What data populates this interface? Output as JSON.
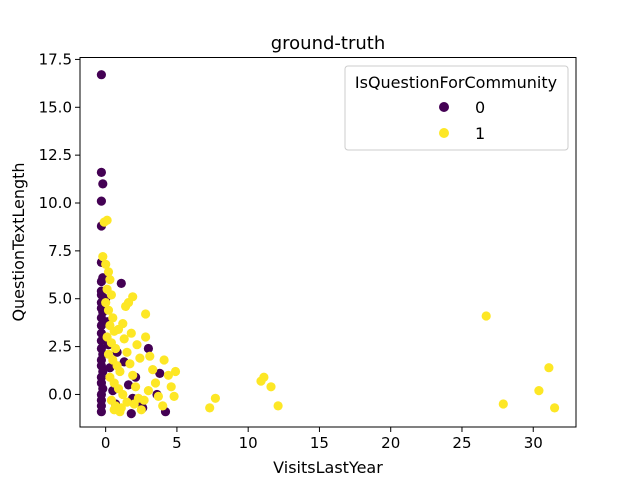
{
  "chart_data": {
    "type": "scatter",
    "title": "ground-truth",
    "xlabel": "VisitsLastYear",
    "ylabel": "QuestionTextLength",
    "xlim": [
      -1.8,
      33.0
    ],
    "ylim": [
      -1.7,
      17.6
    ],
    "xticks": [
      0,
      5,
      10,
      15,
      20,
      25,
      30
    ],
    "xtick_labels": [
      "0",
      "5",
      "10",
      "15",
      "20",
      "25",
      "30"
    ],
    "yticks": [
      0.0,
      2.5,
      5.0,
      7.5,
      10.0,
      12.5,
      15.0,
      17.5
    ],
    "ytick_labels": [
      "0.0",
      "2.5",
      "5.0",
      "7.5",
      "10.0",
      "12.5",
      "15.0",
      "17.5"
    ],
    "grid": false,
    "legend": {
      "title": "IsQuestionForCommunity",
      "placement": "top-right",
      "entries": [
        {
          "label": "0",
          "color": "#440154"
        },
        {
          "label": "1",
          "color": "#fde725"
        }
      ]
    },
    "series": [
      {
        "color": "#440154",
        "points": [
          [
            -0.3,
            16.7
          ],
          [
            -0.3,
            11.6
          ],
          [
            -0.2,
            11.0
          ],
          [
            -0.3,
            10.1
          ],
          [
            -0.3,
            8.8
          ],
          [
            -0.3,
            6.9
          ],
          [
            -0.2,
            6.1
          ],
          [
            -0.3,
            5.9
          ],
          [
            -0.3,
            5.4
          ],
          [
            -0.3,
            5.2
          ],
          [
            -0.3,
            4.8
          ],
          [
            -0.3,
            4.5
          ],
          [
            -0.2,
            4.3
          ],
          [
            -0.3,
            4.0
          ],
          [
            -0.3,
            3.6
          ],
          [
            -0.3,
            3.2
          ],
          [
            -0.3,
            2.8
          ],
          [
            -0.3,
            2.4
          ],
          [
            -0.2,
            2.1
          ],
          [
            -0.3,
            1.8
          ],
          [
            -0.3,
            1.5
          ],
          [
            -0.2,
            1.2
          ],
          [
            -0.3,
            0.9
          ],
          [
            -0.3,
            0.6
          ],
          [
            -0.2,
            0.3
          ],
          [
            -0.3,
            0.0
          ],
          [
            -0.3,
            -0.3
          ],
          [
            -0.3,
            -0.6
          ],
          [
            -0.3,
            -0.9
          ],
          [
            0.0,
            5.0
          ],
          [
            0.1,
            3.8
          ],
          [
            0.2,
            2.6
          ],
          [
            0.3,
            1.4
          ],
          [
            0.5,
            0.2
          ],
          [
            0.7,
            -0.5
          ],
          [
            1.1,
            5.8
          ],
          [
            1.3,
            1.7
          ],
          [
            1.6,
            0.5
          ],
          [
            1.9,
            -0.2
          ],
          [
            2.1,
            0.9
          ],
          [
            2.6,
            -0.7
          ],
          [
            3.0,
            2.4
          ],
          [
            3.6,
            0.0
          ],
          [
            3.8,
            1.1
          ],
          [
            4.2,
            -0.9
          ],
          [
            1.8,
            -1.0
          ],
          [
            0.8,
            2.2
          ],
          [
            2.3,
            -0.4
          ]
        ]
      },
      {
        "color": "#fde725",
        "points": [
          [
            0.1,
            9.1
          ],
          [
            -0.1,
            9.0
          ],
          [
            -0.2,
            7.2
          ],
          [
            0.0,
            6.8
          ],
          [
            0.2,
            6.4
          ],
          [
            0.3,
            6.0
          ],
          [
            0.1,
            5.5
          ],
          [
            0.4,
            5.2
          ],
          [
            0.0,
            4.8
          ],
          [
            0.2,
            4.4
          ],
          [
            0.5,
            4.0
          ],
          [
            0.3,
            3.6
          ],
          [
            0.6,
            3.3
          ],
          [
            0.1,
            3.0
          ],
          [
            0.4,
            2.7
          ],
          [
            0.7,
            2.4
          ],
          [
            0.2,
            2.1
          ],
          [
            0.5,
            1.8
          ],
          [
            0.8,
            1.5
          ],
          [
            1.0,
            1.2
          ],
          [
            0.3,
            0.9
          ],
          [
            0.6,
            0.6
          ],
          [
            0.9,
            0.3
          ],
          [
            1.2,
            0.0
          ],
          [
            0.4,
            -0.3
          ],
          [
            0.7,
            -0.6
          ],
          [
            1.0,
            -0.9
          ],
          [
            1.3,
            2.9
          ],
          [
            1.5,
            2.2
          ],
          [
            1.7,
            1.6
          ],
          [
            1.9,
            1.0
          ],
          [
            2.1,
            0.4
          ],
          [
            2.3,
            -0.2
          ],
          [
            2.5,
            -0.8
          ],
          [
            1.4,
            4.6
          ],
          [
            1.6,
            4.8
          ],
          [
            1.9,
            5.1
          ],
          [
            2.8,
            4.2
          ],
          [
            2.8,
            3.0
          ],
          [
            3.1,
            2.0
          ],
          [
            3.3,
            1.3
          ],
          [
            3.5,
            0.6
          ],
          [
            3.7,
            -0.1
          ],
          [
            4.0,
            -0.6
          ],
          [
            4.1,
            1.8
          ],
          [
            4.4,
            1.0
          ],
          [
            4.6,
            0.4
          ],
          [
            4.8,
            -0.1
          ],
          [
            4.9,
            1.2
          ],
          [
            1.1,
            -0.7
          ],
          [
            2.0,
            -0.5
          ],
          [
            2.7,
            -0.3
          ],
          [
            3.0,
            0.2
          ],
          [
            0.9,
            3.4
          ],
          [
            1.2,
            3.7
          ],
          [
            1.8,
            3.2
          ],
          [
            2.2,
            2.6
          ],
          [
            2.4,
            1.9
          ],
          [
            1.5,
            -0.4
          ],
          [
            0.6,
            -0.8
          ],
          [
            7.3,
            -0.7
          ],
          [
            7.7,
            -0.2
          ],
          [
            10.9,
            0.7
          ],
          [
            11.1,
            0.9
          ],
          [
            11.6,
            0.4
          ],
          [
            12.1,
            -0.6
          ],
          [
            26.7,
            4.1
          ],
          [
            27.9,
            -0.5
          ],
          [
            30.4,
            0.2
          ],
          [
            31.1,
            1.4
          ],
          [
            31.5,
            -0.7
          ]
        ]
      }
    ]
  }
}
